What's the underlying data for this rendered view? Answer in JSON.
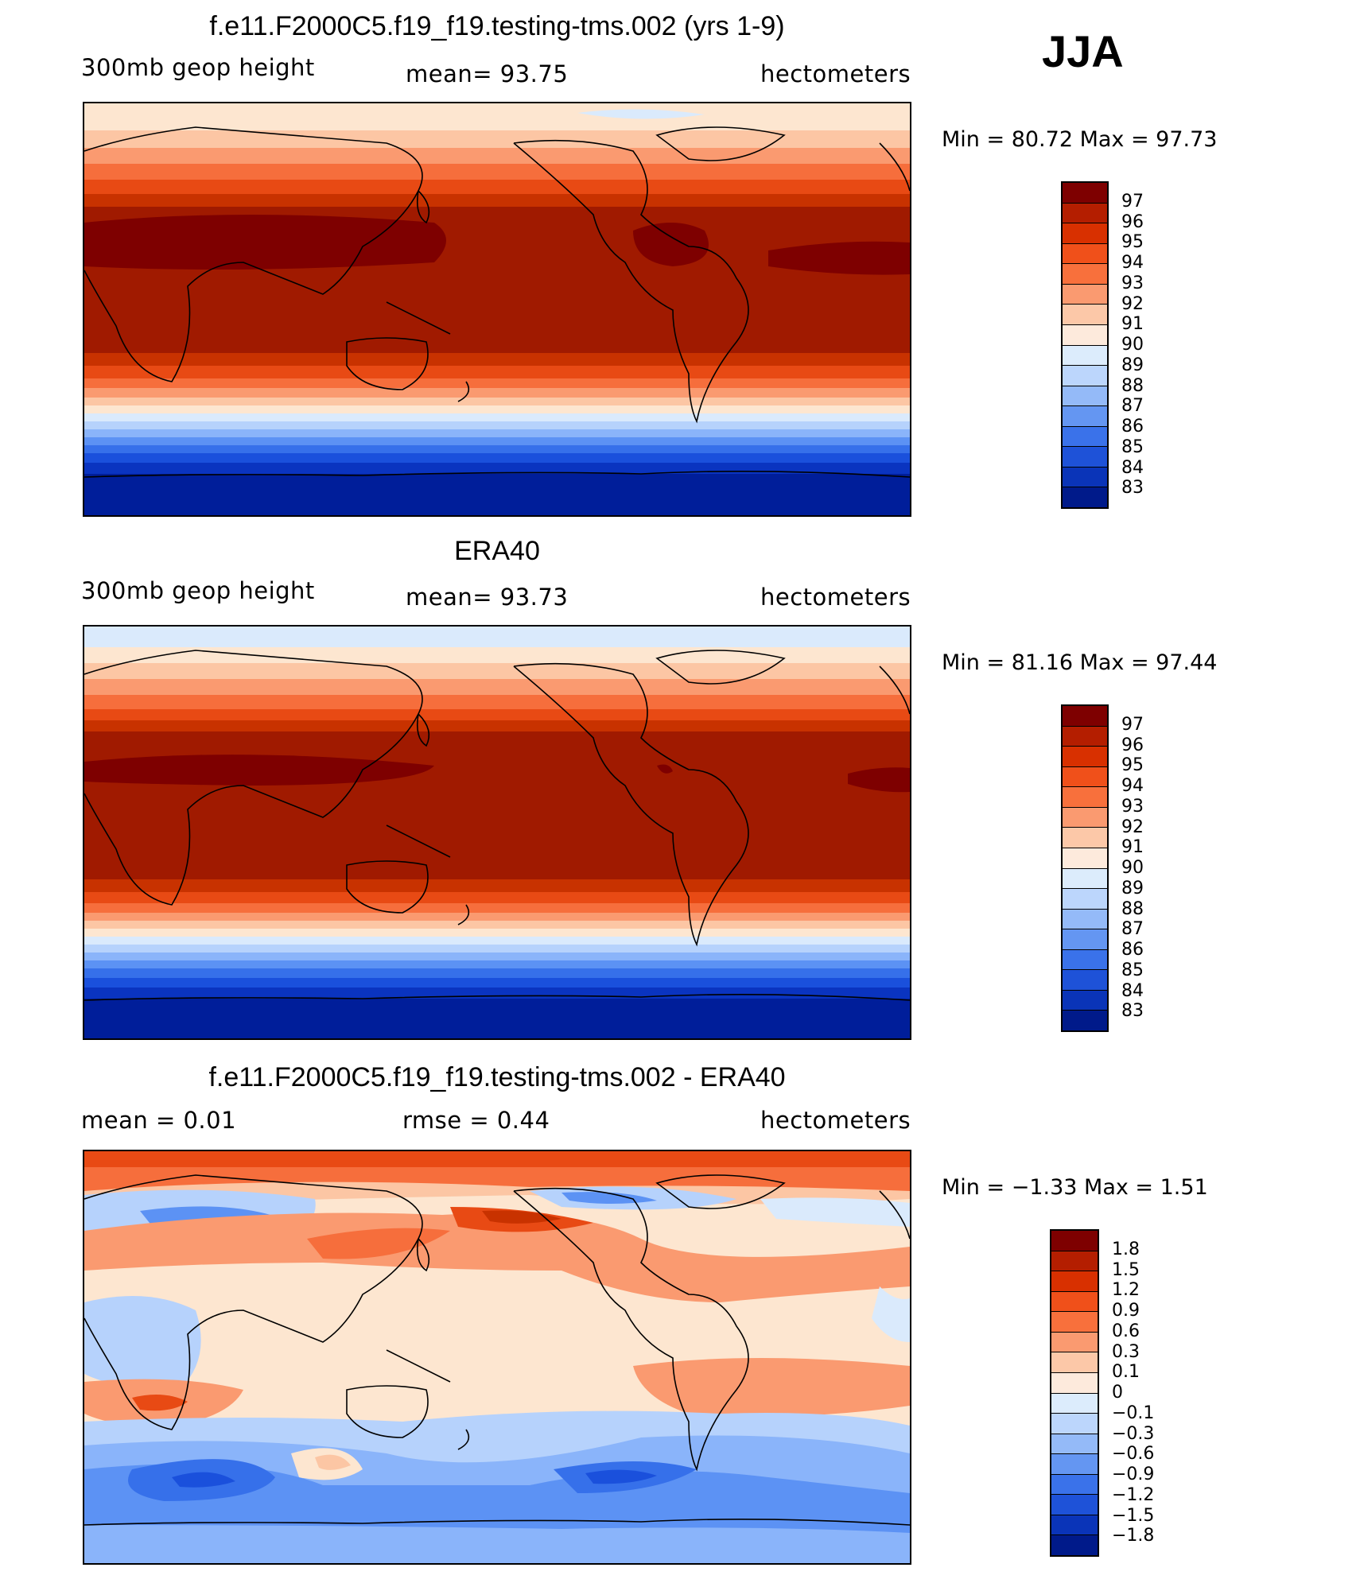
{
  "season_label": "JJA",
  "panels": [
    {
      "id": "model",
      "title": "f.e11.F2000C5.f19_f19.testing-tms.002 (yrs 1-9)",
      "left_label": "300mb  geop  height",
      "center_label": "mean=   93.75",
      "units": "hectometers",
      "min_max": "Min  =    80.72  Max  =    97.73",
      "map_colors": [
        "#7e0000",
        "#a01a00",
        "#c83200",
        "#e84a14",
        "#f66e3c",
        "#fa9a70",
        "#fcc6a4",
        "#fde6d0",
        "#daeafc",
        "#b6d2fc",
        "#8ab4fa",
        "#5c92f4",
        "#3670ea",
        "#1a50dc",
        "#0a34c0",
        "#001e9a",
        "#000c7c"
      ],
      "colorbar": {
        "labels": [
          "97",
          "96",
          "95",
          "94",
          "93",
          "92",
          "91",
          "90",
          "89",
          "88",
          "87",
          "86",
          "85",
          "84",
          "83"
        ],
        "colors": [
          "#7e0000",
          "#b41e00",
          "#d83000",
          "#f0501a",
          "#f8703c",
          "#fa9a70",
          "#fcc8a8",
          "#fdeadc",
          "#dcecfc",
          "#bcd6fc",
          "#94baf8",
          "#6496f2",
          "#3a72ea",
          "#1e52d8",
          "#0a34b8",
          "#001a8a"
        ]
      }
    },
    {
      "id": "obs",
      "title": "ERA40",
      "left_label": "300mb  geop  height",
      "center_label": "mean=   93.73",
      "units": "hectometers",
      "min_max": "Min  =    81.16  Max  =    97.44",
      "colorbar": {
        "labels": [
          "97",
          "96",
          "95",
          "94",
          "93",
          "92",
          "91",
          "90",
          "89",
          "88",
          "87",
          "86",
          "85",
          "84",
          "83"
        ],
        "colors": [
          "#7e0000",
          "#b41e00",
          "#d83000",
          "#f0501a",
          "#f8703c",
          "#fa9a70",
          "#fcc8a8",
          "#fdeadc",
          "#dcecfc",
          "#bcd6fc",
          "#94baf8",
          "#6496f2",
          "#3a72ea",
          "#1e52d8",
          "#0a34b8",
          "#001a8a"
        ]
      }
    },
    {
      "id": "diff",
      "title": "f.e11.F2000C5.f19_f19.testing-tms.002 - ERA40",
      "left_label": "mean  =      0.01",
      "center_label": "rmse  =     0.44",
      "units": "hectometers",
      "min_max": "Min  =   −1.33  Max  =      1.51",
      "colorbar": {
        "labels": [
          "1.8",
          "1.5",
          "1.2",
          "0.9",
          "0.6",
          "0.3",
          "0.1",
          "0",
          "−0.1",
          "−0.3",
          "−0.6",
          "−0.9",
          "−1.2",
          "−1.5",
          "−1.8"
        ],
        "colors": [
          "#7e0000",
          "#b41e00",
          "#d83000",
          "#f0501a",
          "#f8703c",
          "#fa9a70",
          "#fcc8a8",
          "#fdeadc",
          "#dcecfc",
          "#bcd6fc",
          "#94baf8",
          "#6496f2",
          "#3a72ea",
          "#1e52d8",
          "#0a34b8",
          "#001a8a"
        ]
      }
    }
  ]
}
